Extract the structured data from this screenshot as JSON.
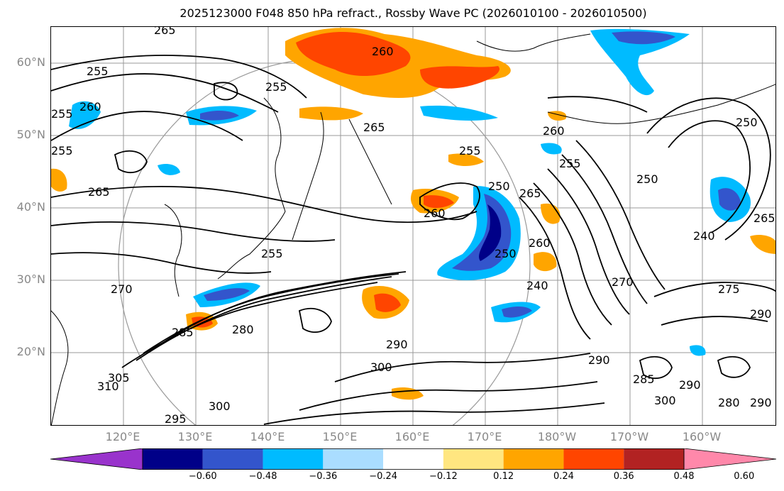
{
  "title": "2025123000 F048 850 hPa refract., Rossby Wave PC (2026010100 - 2026010500)",
  "lat_labels": [
    "60°N",
    "50°N",
    "40°N",
    "30°N",
    "20°N"
  ],
  "lon_labels": [
    "120°E",
    "130°E",
    "140°E",
    "150°E",
    "160°E",
    "170°E",
    "180°W",
    "170°W",
    "160°W"
  ],
  "contour_labels": [
    "265",
    "260",
    "255",
    "255",
    "260",
    "255",
    "255",
    "265",
    "260",
    "265",
    "255",
    "250",
    "265",
    "260",
    "250",
    "260",
    "255",
    "255",
    "270",
    "280",
    "285",
    "290",
    "300",
    "290",
    "285",
    "290",
    "300",
    "280",
    "290",
    "275",
    "290",
    "240",
    "250",
    "270",
    "265",
    "250",
    "240",
    "295",
    "300",
    "310",
    "305"
  ],
  "colorbar": {
    "ticks": [
      "−0.60",
      "−0.48",
      "−0.36",
      "−0.24",
      "−0.12",
      "0.12",
      "0.24",
      "0.36",
      "0.48",
      "0.60"
    ],
    "colors": [
      "#9933cc",
      "#000088",
      "#3355cc",
      "#00bbff",
      "#aaddff",
      "#ffffff",
      "#ffe680",
      "#ffa500",
      "#ff4500",
      "#b22222",
      "#ff88aa"
    ]
  }
}
